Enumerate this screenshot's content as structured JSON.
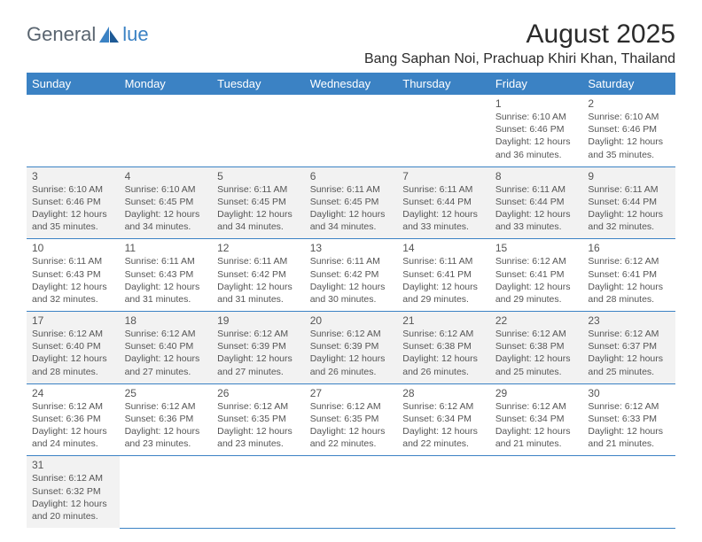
{
  "logo": {
    "general": "General",
    "blue": "lue"
  },
  "title": "August 2025",
  "location": "Bang Saphan Noi, Prachuap Khiri Khan, Thailand",
  "colors": {
    "header_bg": "#3b82c4",
    "header_text": "#ffffff",
    "cell_border": "#3b82c4",
    "shaded_bg": "#f2f2f2",
    "text": "#555555",
    "logo_gray": "#5a6570",
    "logo_blue": "#3b82c4"
  },
  "day_headers": [
    "Sunday",
    "Monday",
    "Tuesday",
    "Wednesday",
    "Thursday",
    "Friday",
    "Saturday"
  ],
  "weeks": [
    [
      {
        "empty": true
      },
      {
        "empty": true
      },
      {
        "empty": true
      },
      {
        "empty": true
      },
      {
        "empty": true
      },
      {
        "day": "1",
        "sunrise": "Sunrise: 6:10 AM",
        "sunset": "Sunset: 6:46 PM",
        "daylight": "Daylight: 12 hours and 36 minutes."
      },
      {
        "day": "2",
        "sunrise": "Sunrise: 6:10 AM",
        "sunset": "Sunset: 6:46 PM",
        "daylight": "Daylight: 12 hours and 35 minutes."
      }
    ],
    [
      {
        "day": "3",
        "shaded": true,
        "sunrise": "Sunrise: 6:10 AM",
        "sunset": "Sunset: 6:46 PM",
        "daylight": "Daylight: 12 hours and 35 minutes."
      },
      {
        "day": "4",
        "shaded": true,
        "sunrise": "Sunrise: 6:10 AM",
        "sunset": "Sunset: 6:45 PM",
        "daylight": "Daylight: 12 hours and 34 minutes."
      },
      {
        "day": "5",
        "shaded": true,
        "sunrise": "Sunrise: 6:11 AM",
        "sunset": "Sunset: 6:45 PM",
        "daylight": "Daylight: 12 hours and 34 minutes."
      },
      {
        "day": "6",
        "shaded": true,
        "sunrise": "Sunrise: 6:11 AM",
        "sunset": "Sunset: 6:45 PM",
        "daylight": "Daylight: 12 hours and 34 minutes."
      },
      {
        "day": "7",
        "shaded": true,
        "sunrise": "Sunrise: 6:11 AM",
        "sunset": "Sunset: 6:44 PM",
        "daylight": "Daylight: 12 hours and 33 minutes."
      },
      {
        "day": "8",
        "shaded": true,
        "sunrise": "Sunrise: 6:11 AM",
        "sunset": "Sunset: 6:44 PM",
        "daylight": "Daylight: 12 hours and 33 minutes."
      },
      {
        "day": "9",
        "shaded": true,
        "sunrise": "Sunrise: 6:11 AM",
        "sunset": "Sunset: 6:44 PM",
        "daylight": "Daylight: 12 hours and 32 minutes."
      }
    ],
    [
      {
        "day": "10",
        "sunrise": "Sunrise: 6:11 AM",
        "sunset": "Sunset: 6:43 PM",
        "daylight": "Daylight: 12 hours and 32 minutes."
      },
      {
        "day": "11",
        "sunrise": "Sunrise: 6:11 AM",
        "sunset": "Sunset: 6:43 PM",
        "daylight": "Daylight: 12 hours and 31 minutes."
      },
      {
        "day": "12",
        "sunrise": "Sunrise: 6:11 AM",
        "sunset": "Sunset: 6:42 PM",
        "daylight": "Daylight: 12 hours and 31 minutes."
      },
      {
        "day": "13",
        "sunrise": "Sunrise: 6:11 AM",
        "sunset": "Sunset: 6:42 PM",
        "daylight": "Daylight: 12 hours and 30 minutes."
      },
      {
        "day": "14",
        "sunrise": "Sunrise: 6:11 AM",
        "sunset": "Sunset: 6:41 PM",
        "daylight": "Daylight: 12 hours and 29 minutes."
      },
      {
        "day": "15",
        "sunrise": "Sunrise: 6:12 AM",
        "sunset": "Sunset: 6:41 PM",
        "daylight": "Daylight: 12 hours and 29 minutes."
      },
      {
        "day": "16",
        "sunrise": "Sunrise: 6:12 AM",
        "sunset": "Sunset: 6:41 PM",
        "daylight": "Daylight: 12 hours and 28 minutes."
      }
    ],
    [
      {
        "day": "17",
        "shaded": true,
        "sunrise": "Sunrise: 6:12 AM",
        "sunset": "Sunset: 6:40 PM",
        "daylight": "Daylight: 12 hours and 28 minutes."
      },
      {
        "day": "18",
        "shaded": true,
        "sunrise": "Sunrise: 6:12 AM",
        "sunset": "Sunset: 6:40 PM",
        "daylight": "Daylight: 12 hours and 27 minutes."
      },
      {
        "day": "19",
        "shaded": true,
        "sunrise": "Sunrise: 6:12 AM",
        "sunset": "Sunset: 6:39 PM",
        "daylight": "Daylight: 12 hours and 27 minutes."
      },
      {
        "day": "20",
        "shaded": true,
        "sunrise": "Sunrise: 6:12 AM",
        "sunset": "Sunset: 6:39 PM",
        "daylight": "Daylight: 12 hours and 26 minutes."
      },
      {
        "day": "21",
        "shaded": true,
        "sunrise": "Sunrise: 6:12 AM",
        "sunset": "Sunset: 6:38 PM",
        "daylight": "Daylight: 12 hours and 26 minutes."
      },
      {
        "day": "22",
        "shaded": true,
        "sunrise": "Sunrise: 6:12 AM",
        "sunset": "Sunset: 6:38 PM",
        "daylight": "Daylight: 12 hours and 25 minutes."
      },
      {
        "day": "23",
        "shaded": true,
        "sunrise": "Sunrise: 6:12 AM",
        "sunset": "Sunset: 6:37 PM",
        "daylight": "Daylight: 12 hours and 25 minutes."
      }
    ],
    [
      {
        "day": "24",
        "sunrise": "Sunrise: 6:12 AM",
        "sunset": "Sunset: 6:36 PM",
        "daylight": "Daylight: 12 hours and 24 minutes."
      },
      {
        "day": "25",
        "sunrise": "Sunrise: 6:12 AM",
        "sunset": "Sunset: 6:36 PM",
        "daylight": "Daylight: 12 hours and 23 minutes."
      },
      {
        "day": "26",
        "sunrise": "Sunrise: 6:12 AM",
        "sunset": "Sunset: 6:35 PM",
        "daylight": "Daylight: 12 hours and 23 minutes."
      },
      {
        "day": "27",
        "sunrise": "Sunrise: 6:12 AM",
        "sunset": "Sunset: 6:35 PM",
        "daylight": "Daylight: 12 hours and 22 minutes."
      },
      {
        "day": "28",
        "sunrise": "Sunrise: 6:12 AM",
        "sunset": "Sunset: 6:34 PM",
        "daylight": "Daylight: 12 hours and 22 minutes."
      },
      {
        "day": "29",
        "sunrise": "Sunrise: 6:12 AM",
        "sunset": "Sunset: 6:34 PM",
        "daylight": "Daylight: 12 hours and 21 minutes."
      },
      {
        "day": "30",
        "sunrise": "Sunrise: 6:12 AM",
        "sunset": "Sunset: 6:33 PM",
        "daylight": "Daylight: 12 hours and 21 minutes."
      }
    ],
    [
      {
        "day": "31",
        "shaded": true,
        "sunrise": "Sunrise: 6:12 AM",
        "sunset": "Sunset: 6:32 PM",
        "daylight": "Daylight: 12 hours and 20 minutes."
      },
      {
        "empty": true
      },
      {
        "empty": true
      },
      {
        "empty": true
      },
      {
        "empty": true
      },
      {
        "empty": true
      },
      {
        "empty": true
      }
    ]
  ]
}
